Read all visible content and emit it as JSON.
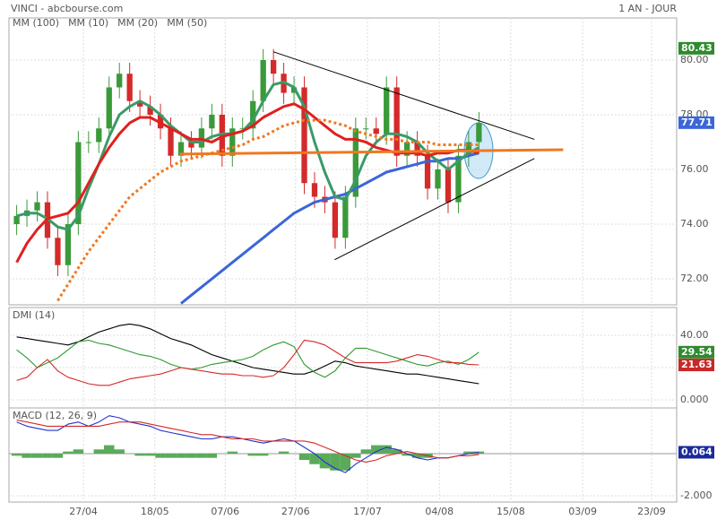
{
  "chart_data": [
    {
      "type": "candlestick",
      "title": "VINCI - abcbourse.com",
      "subtitle": "1 AN - JOUR",
      "up_color": "#3a9a3a",
      "down_color": "#d42a2a",
      "x": [
        1.5,
        3.5,
        5.5,
        7.5,
        9.5,
        11.5,
        13.5,
        15.5,
        17.5,
        19.5,
        21.5,
        23.5,
        25.5,
        27.5,
        29.5,
        31.5,
        33.5,
        35.5,
        37.5,
        39.5,
        41.5,
        43.5,
        45.5,
        47.5,
        49.5,
        51.5,
        53.5,
        55.5,
        57.5,
        59.5,
        61.5,
        63.5,
        65.5,
        67.5,
        69.5,
        71.5,
        73.5,
        75.5,
        77.5,
        79.5,
        81.5,
        83.5,
        85.5,
        87.5,
        89.5,
        91.5
      ],
      "open": [
        74.0,
        74.3,
        74.5,
        74.8,
        73.5,
        72.5,
        74.0,
        77.0,
        77.0,
        77.5,
        79.0,
        79.5,
        78.5,
        78.3,
        78.0,
        77.5,
        76.5,
        77.0,
        76.8,
        77.5,
        78.0,
        76.5,
        77.5,
        77.5,
        78.5,
        80.0,
        79.5,
        78.8,
        79.0,
        75.5,
        75.0,
        74.8,
        73.5,
        75.0,
        77.5,
        77.5,
        77.3,
        79.0,
        76.5,
        77.0,
        76.5,
        75.3,
        76.0,
        74.8,
        76.5,
        77.0
      ],
      "high": [
        74.7,
        74.9,
        75.2,
        75.2,
        73.9,
        74.4,
        77.4,
        77.4,
        77.9,
        79.4,
        79.9,
        79.9,
        78.9,
        78.7,
        78.4,
        77.9,
        77.4,
        77.4,
        77.9,
        78.4,
        78.4,
        77.9,
        77.9,
        78.9,
        80.4,
        80.4,
        79.9,
        79.4,
        79.4,
        75.9,
        75.4,
        75.2,
        75.4,
        77.9,
        77.9,
        77.9,
        79.4,
        79.4,
        77.4,
        77.4,
        76.9,
        76.4,
        76.4,
        76.9,
        77.4,
        78.1
      ],
      "low": [
        73.6,
        73.9,
        74.1,
        73.1,
        72.1,
        72.1,
        73.6,
        76.6,
        76.6,
        77.1,
        78.6,
        78.1,
        77.9,
        77.6,
        77.1,
        76.1,
        76.1,
        76.4,
        76.4,
        77.1,
        76.1,
        76.1,
        77.1,
        77.1,
        78.1,
        79.1,
        78.4,
        78.4,
        75.1,
        74.6,
        74.4,
        73.1,
        73.1,
        74.6,
        77.1,
        76.9,
        76.9,
        76.1,
        76.1,
        76.1,
        74.9,
        74.9,
        74.4,
        74.4,
        76.1,
        76.6
      ],
      "close": [
        74.3,
        74.5,
        74.8,
        73.5,
        72.5,
        74.0,
        77.0,
        77.0,
        77.5,
        79.0,
        79.5,
        78.5,
        78.3,
        78.0,
        77.5,
        76.5,
        77.0,
        76.8,
        77.5,
        78.0,
        76.5,
        77.5,
        77.5,
        78.5,
        80.0,
        79.5,
        78.8,
        79.0,
        75.5,
        75.0,
        74.8,
        73.5,
        75.0,
        77.5,
        77.5,
        77.3,
        79.0,
        76.5,
        77.0,
        76.5,
        75.3,
        76.0,
        74.8,
        76.5,
        77.0,
        77.7
      ],
      "series": [
        {
          "name": "MM (100)",
          "color": "#3a66d8",
          "values": [
            null,
            null,
            null,
            null,
            null,
            null,
            null,
            null,
            null,
            null,
            null,
            null,
            null,
            null,
            null,
            null,
            71.1,
            71.4,
            71.7,
            72.0,
            72.3,
            72.6,
            72.9,
            73.2,
            73.5,
            73.8,
            74.1,
            74.4,
            74.6,
            74.8,
            74.9,
            75.0,
            75.1,
            75.3,
            75.5,
            75.7,
            75.9,
            76.0,
            76.1,
            76.2,
            76.3,
            76.3,
            76.4,
            76.4,
            76.5,
            76.6
          ]
        },
        {
          "name": "MM (10)",
          "color": "#3a9a68",
          "values": [
            74.3,
            74.4,
            74.4,
            74.2,
            73.9,
            73.8,
            74.3,
            75.3,
            76.2,
            77.2,
            78.0,
            78.3,
            78.5,
            78.3,
            78.0,
            77.6,
            77.3,
            77.0,
            77.0,
            77.2,
            77.3,
            77.3,
            77.4,
            77.8,
            78.5,
            79.1,
            79.2,
            79.0,
            78.3,
            77.0,
            75.9,
            75.0,
            74.9,
            75.6,
            76.5,
            77.0,
            77.3,
            77.3,
            77.2,
            77.0,
            76.6,
            76.3,
            76.0,
            76.3,
            76.6,
            76.8
          ]
        },
        {
          "name": "MM (20)",
          "color": "#e02020",
          "values": [
            72.6,
            73.3,
            73.8,
            74.2,
            74.3,
            74.4,
            74.8,
            75.5,
            76.2,
            76.8,
            77.3,
            77.7,
            77.9,
            77.9,
            77.7,
            77.5,
            77.3,
            77.1,
            77.1,
            77.0,
            77.2,
            77.3,
            77.4,
            77.6,
            77.9,
            78.1,
            78.3,
            78.4,
            78.2,
            77.9,
            77.6,
            77.3,
            77.1,
            77.1,
            77.0,
            76.8,
            76.7,
            76.6,
            76.6,
            76.6,
            76.5,
            76.6,
            76.6,
            76.7,
            76.7,
            76.6
          ]
        },
        {
          "name": "MM (50)",
          "color": "#f07820",
          "dashed": true,
          "values": [
            null,
            null,
            null,
            null,
            71.2,
            71.8,
            72.4,
            73.0,
            73.5,
            74.0,
            74.5,
            75.0,
            75.3,
            75.6,
            75.9,
            76.1,
            76.3,
            76.4,
            76.5,
            76.6,
            76.7,
            76.8,
            76.9,
            77.1,
            77.2,
            77.4,
            77.6,
            77.7,
            77.8,
            77.8,
            77.8,
            77.7,
            77.6,
            77.4,
            77.3,
            77.2,
            77.1,
            77.1,
            77.0,
            77.0,
            77.0,
            76.9,
            76.9,
            76.9,
            76.9,
            76.9
          ]
        }
      ],
      "trendlines": [
        {
          "x": [
            51.5,
            102.3
          ],
          "y": [
            80.3,
            77.1
          ],
          "color": "#000000"
        },
        {
          "x": [
            63.4,
            102.3
          ],
          "y": [
            72.7,
            76.4
          ],
          "color": "#000000"
        },
        {
          "x": [
            33.2,
            107.9
          ],
          "y": [
            76.56,
            76.72
          ],
          "color": "#f07820"
        }
      ],
      "tags": [
        {
          "value": 80.43,
          "label": "80.43",
          "color": "#2e8b2e"
        },
        {
          "value": 77.71,
          "label": "77.71",
          "color": "#3a66d8"
        }
      ],
      "xlim": [
        0,
        130
      ],
      "ylim": [
        71.05,
        81.54
      ],
      "yticks": [
        {
          "value": 80,
          "label": "80.00"
        },
        {
          "value": 78,
          "label": "78.00"
        },
        {
          "value": 76,
          "label": "76.00"
        },
        {
          "value": 74,
          "label": "74.00"
        },
        {
          "value": 72,
          "label": "72.00"
        }
      ]
    },
    {
      "type": "line",
      "title": "DMI (14)",
      "x": [
        1.5,
        3.5,
        5.5,
        7.5,
        9.5,
        11.5,
        13.5,
        15.5,
        17.5,
        19.5,
        21.5,
        23.5,
        25.5,
        27.5,
        29.5,
        31.5,
        33.5,
        35.5,
        37.5,
        39.5,
        41.5,
        43.5,
        45.5,
        47.5,
        49.5,
        51.5,
        53.5,
        55.5,
        57.5,
        59.5,
        61.5,
        63.5,
        65.5,
        67.5,
        69.5,
        71.5,
        73.5,
        75.5,
        77.5,
        79.5,
        81.5,
        83.5,
        85.5,
        87.5,
        89.5,
        91.5
      ],
      "series": [
        {
          "color": "#000000",
          "values": [
            39,
            38,
            37,
            36,
            35,
            34,
            36,
            39,
            42,
            44,
            46,
            47,
            46,
            44,
            41,
            38,
            36,
            34,
            31,
            28,
            26,
            24,
            22,
            20,
            19,
            18,
            17,
            16,
            16,
            18,
            21,
            24,
            23,
            21,
            20,
            19,
            18,
            17,
            16,
            16,
            15,
            14,
            13,
            12,
            11,
            10
          ]
        },
        {
          "color": "#2e9a2e",
          "values": [
            31,
            26,
            20,
            23,
            26,
            31,
            36,
            37,
            35,
            34,
            32,
            30,
            28,
            27,
            25,
            22,
            20,
            19,
            20,
            22,
            23,
            24,
            25,
            27,
            31,
            34,
            36,
            33,
            22,
            17,
            14,
            18,
            26,
            32,
            32,
            30,
            28,
            26,
            24,
            22,
            21,
            23,
            24,
            22,
            25,
            29.54
          ]
        },
        {
          "color": "#d42a2a",
          "values": [
            12,
            14,
            20,
            25,
            18,
            14,
            12,
            10,
            9,
            9,
            11,
            13,
            14,
            15,
            16,
            18,
            20,
            19,
            18,
            17,
            16,
            16,
            15,
            15,
            14,
            15,
            20,
            28,
            37,
            36,
            34,
            30,
            26,
            23,
            23,
            23,
            23,
            24,
            26,
            28,
            27,
            25,
            23,
            23,
            22,
            21.63
          ]
        }
      ],
      "tags": [
        {
          "value": 29.54,
          "label": "29.54",
          "color": "#2e8b2e"
        },
        {
          "value": 21.63,
          "label": "21.63",
          "color": "#c82828"
        }
      ],
      "xlim": [
        0,
        130
      ],
      "ylim": [
        -5,
        57.2
      ],
      "yticks": [
        {
          "value": 40,
          "label": "40.00"
        },
        {
          "value": 20,
          "label": "20.00"
        },
        {
          "value": 0,
          "label": "0.000"
        }
      ]
    },
    {
      "type": "line",
      "title": "MACD (12, 26, 9)",
      "x": [
        1.5,
        3.5,
        5.5,
        7.5,
        9.5,
        11.5,
        13.5,
        15.5,
        17.5,
        19.5,
        21.5,
        23.5,
        25.5,
        27.5,
        29.5,
        31.5,
        33.5,
        35.5,
        37.5,
        39.5,
        41.5,
        43.5,
        45.5,
        47.5,
        49.5,
        51.5,
        53.5,
        55.5,
        57.5,
        59.5,
        61.5,
        63.5,
        65.5,
        67.5,
        69.5,
        71.5,
        73.5,
        75.5,
        77.5,
        79.5,
        81.5,
        83.5,
        85.5,
        87.5,
        89.5,
        91.5
      ],
      "series": [
        {
          "type": "bar",
          "color": "#5aaa5a",
          "values": [
            -0.1,
            -0.2,
            -0.2,
            -0.2,
            -0.2,
            0.1,
            0.2,
            0,
            0.2,
            0.4,
            0.2,
            0,
            -0.1,
            -0.1,
            -0.2,
            -0.2,
            -0.2,
            -0.2,
            -0.2,
            -0.2,
            0,
            0.1,
            0,
            -0.1,
            -0.1,
            0,
            0.1,
            0,
            -0.3,
            -0.5,
            -0.7,
            -0.8,
            -0.8,
            -0.2,
            0.2,
            0.4,
            0.4,
            0.2,
            -0.1,
            -0.2,
            -0.2,
            0,
            0,
            0,
            0.1,
            0.1
          ]
        },
        {
          "color": "#2233cc",
          "values": [
            1.5,
            1.3,
            1.2,
            1.1,
            1.1,
            1.4,
            1.5,
            1.3,
            1.5,
            1.8,
            1.7,
            1.5,
            1.4,
            1.3,
            1.1,
            1.0,
            0.9,
            0.8,
            0.7,
            0.7,
            0.8,
            0.8,
            0.7,
            0.6,
            0.5,
            0.6,
            0.7,
            0.6,
            0.3,
            0.0,
            -0.4,
            -0.7,
            -0.9,
            -0.5,
            -0.2,
            0.1,
            0.3,
            0.2,
            0.0,
            -0.2,
            -0.3,
            -0.2,
            -0.2,
            -0.1,
            0.0,
            0.064
          ]
        },
        {
          "color": "#d42a2a",
          "values": [
            1.6,
            1.5,
            1.4,
            1.3,
            1.3,
            1.3,
            1.3,
            1.3,
            1.3,
            1.4,
            1.5,
            1.5,
            1.5,
            1.4,
            1.3,
            1.2,
            1.1,
            1.0,
            0.9,
            0.9,
            0.8,
            0.7,
            0.7,
            0.7,
            0.6,
            0.6,
            0.6,
            0.6,
            0.6,
            0.5,
            0.3,
            0.1,
            -0.1,
            -0.3,
            -0.4,
            -0.3,
            -0.1,
            0.0,
            0.1,
            0.0,
            -0.1,
            -0.2,
            -0.2,
            -0.1,
            -0.1,
            -0.04
          ]
        }
      ],
      "tags": [
        {
          "value": 0.064,
          "label": "0.064",
          "color": "#1a2a9a"
        }
      ],
      "xlim": [
        0,
        130
      ],
      "ylim": [
        -2.3,
        2.17
      ],
      "yticks": [
        {
          "value": -2,
          "label": "-2.000"
        }
      ],
      "xticks": [
        {
          "value": 14.5,
          "label": "27/04"
        },
        {
          "value": 28.4,
          "label": "18/05"
        },
        {
          "value": 42.1,
          "label": "07/06"
        },
        {
          "value": 55.8,
          "label": "27/06"
        },
        {
          "value": 69.8,
          "label": "17/07"
        },
        {
          "value": 83.8,
          "label": "04/08"
        },
        {
          "value": 97.7,
          "label": "15/08"
        },
        {
          "value": 111.7,
          "label": "03/09"
        },
        {
          "value": 125.1,
          "label": "23/09"
        }
      ]
    }
  ]
}
